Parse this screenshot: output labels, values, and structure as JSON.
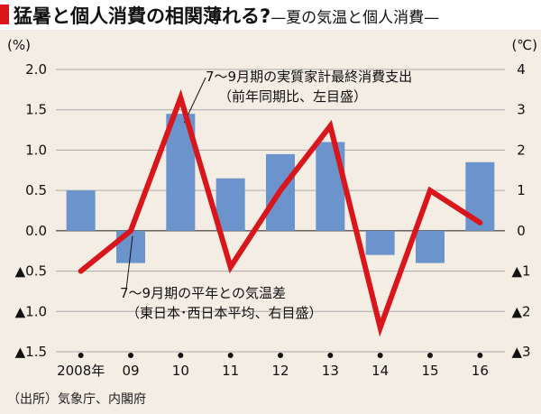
{
  "header": {
    "title": "猛暑と個人消費の相関薄れる?",
    "subtitle": "—夏の気温と個人消費—"
  },
  "source": "（出所）気象庁、内閣府",
  "colors": {
    "accent": "#d8161c",
    "bar": "#6b94cc",
    "line": "#d8161c",
    "background": "#f3ede4"
  },
  "chart_data": {
    "type": "bar+line",
    "categories": [
      "2008年",
      "09",
      "10",
      "11",
      "12",
      "13",
      "14",
      "15",
      "16"
    ],
    "left_axis": {
      "unit": "(%)",
      "range": [
        -1.5,
        2.0
      ],
      "ticks": [
        2.0,
        1.5,
        1.0,
        0.5,
        0.0,
        -0.5,
        -1.0,
        -1.5
      ],
      "tick_labels": [
        "2.0",
        "1.5",
        "1.0",
        "0.5",
        "0.0",
        "▲0.5",
        "▲1.0",
        "▲1.5"
      ]
    },
    "right_axis": {
      "unit": "(℃)",
      "range": [
        -3,
        4
      ],
      "ticks": [
        4,
        3,
        2,
        1,
        0,
        -1,
        -2,
        -3
      ],
      "tick_labels": [
        "4",
        "3",
        "2",
        "1",
        "0",
        "▲1",
        "▲2",
        "▲3"
      ]
    },
    "series": [
      {
        "type": "bar",
        "axis": "left",
        "label_lines": [
          "7〜9月期の実質家計最終消費支出",
          "（前年同期比、左目盛）"
        ],
        "values": [
          0.5,
          -0.4,
          1.45,
          0.65,
          0.95,
          1.1,
          -0.3,
          -0.4,
          0.85
        ]
      },
      {
        "type": "line",
        "axis": "right",
        "label_lines": [
          "7〜9月期の平年との気温差",
          "（東日本･西日本平均、右目盛）"
        ],
        "values": [
          -1.0,
          0.0,
          3.3,
          -0.9,
          1.0,
          2.6,
          -2.4,
          1.0,
          0.2
        ]
      }
    ],
    "grid": true
  }
}
